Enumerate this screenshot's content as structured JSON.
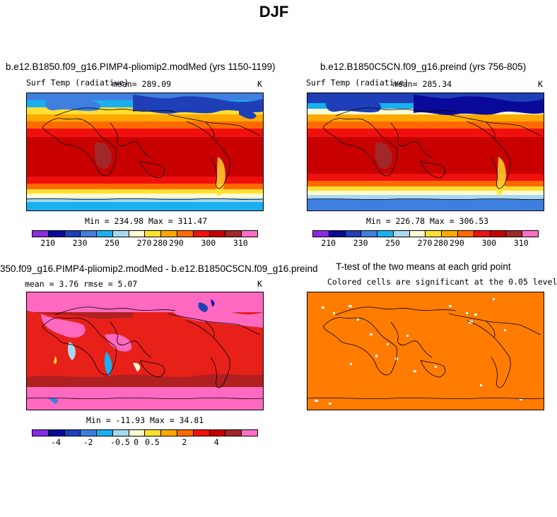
{
  "title": "DJF",
  "panels": {
    "p1": {
      "title": "b.e12.B1850.f09_g16.PIMP4-pliomip2.modMed (yrs 1150-1199)",
      "left_label": "Surf Temp (radiative)",
      "center_label": "mean= 289.09",
      "right_label": "K",
      "minmax": "Min = 234.98 Max = 311.47"
    },
    "p2": {
      "title": "b.e12.B1850C5CN.f09_g16.preind (yrs 756-805)",
      "left_label": "Surf Temp (radiative)",
      "center_label": "mean= 285.34",
      "right_label": "K",
      "minmax": "Min = 226.78 Max = 306.53"
    },
    "p3": {
      "title": "350.f09_g16.PIMP4-pliomip2.modMed - b.e12.B1850C5CN.f09_g16.preind",
      "left_label": "mean =    3.76     rmse =    5.07",
      "right_label": "K",
      "minmax": "Min = -11.93 Max =  34.81"
    },
    "p4": {
      "title": "T-test of the two means at each grid point",
      "subtitle": "Colored cells are significant at the 0.05 level"
    }
  },
  "colorbar_abs": {
    "colors": [
      "#8a2be2",
      "#0a0a9a",
      "#1f3fb8",
      "#3e7fe0",
      "#1ab0f0",
      "#a8d8f0",
      "#fffbd0",
      "#ffe030",
      "#ffa800",
      "#ff6a00",
      "#f01010",
      "#c80000",
      "#a02828",
      "#ff6fc8"
    ],
    "tick_labels": [
      "210",
      "230",
      "250",
      "270",
      "280",
      "290",
      "300",
      "310"
    ]
  },
  "colorbar_diff": {
    "colors": [
      "#8a2be2",
      "#0a0a9a",
      "#1f3fb8",
      "#3e7fe0",
      "#1ab0f0",
      "#a8d8f0",
      "#fffbd0",
      "#ffe030",
      "#ffa800",
      "#ff6a00",
      "#f01010",
      "#c80000",
      "#a02828",
      "#ff6fc8"
    ],
    "tick_labels": [
      "-4",
      "-2",
      "-0.5",
      "0",
      "0.5",
      "2",
      "4"
    ]
  },
  "colors": {
    "ttest_fill": "#ff7c00",
    "diff_base": "#e8201a",
    "diff_high": "#ff69c0",
    "diff_dark": "#b02020"
  }
}
